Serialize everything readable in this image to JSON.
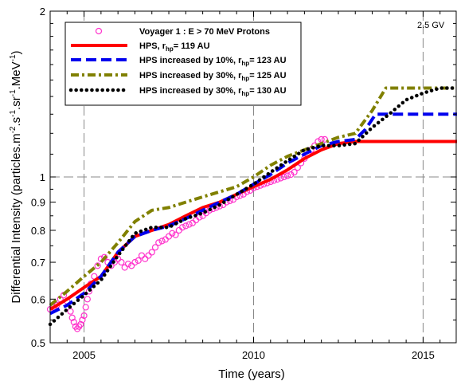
{
  "chart_data": {
    "type": "line",
    "title": "",
    "xlabel": "Time (years)",
    "ylabel": {
      "prefix": "Differential Intensity (particles.m",
      "sup1": "-2",
      "mid1": ".s",
      "sup2": "-1",
      "mid2": ".sr",
      "sup3": "-1",
      "mid3": ".MeV",
      "sup4": "-1",
      "suffix": ")"
    },
    "xlim": [
      2004,
      2016
    ],
    "ylim": [
      0.5,
      2
    ],
    "yscale": "log",
    "x_ticks": [
      2005,
      2010,
      2015
    ],
    "y_ticks": [
      0.5,
      0.6,
      0.7,
      0.8,
      0.9,
      1,
      2
    ],
    "x_ticks_minor": [
      2004.5,
      2005.5,
      2006,
      2006.5,
      2007,
      2007.5,
      2008,
      2008.5,
      2009,
      2009.5,
      2010.5,
      2011,
      2011.5,
      2012,
      2012.5,
      2013,
      2013.5,
      2014,
      2014.5,
      2015.5
    ],
    "y_ticks_minor": [
      0.55,
      0.65,
      0.75,
      0.85,
      0.95,
      1.1,
      1.2,
      1.3,
      1.4,
      1.5,
      1.6,
      1.7,
      1.8,
      1.9
    ],
    "grid": {
      "x": [
        2005,
        2010,
        2015
      ],
      "y": [
        1
      ]
    },
    "annotation": "2.5 GV",
    "legend": {
      "position": "top-left",
      "entries": [
        {
          "label": "Voyager 1 : E > 70 MeV Protons"
        },
        {
          "label": "HPS, r",
          "sub": "hp",
          "rest": "= 119 AU"
        },
        {
          "label": "HPS increased by 10%, r",
          "sub": "hp",
          "rest": "= 123 AU"
        },
        {
          "label": "HPS increased by 30%, r",
          "sub": "hp",
          "rest": "= 125 AU"
        },
        {
          "label": "HPS increased by 30%, r",
          "sub": "hp",
          "rest": "= 130 AU"
        }
      ]
    },
    "series": [
      {
        "style": "circles",
        "color": "#ff33cc",
        "x": [
          2004.0,
          2004.1,
          2004.2,
          2004.3,
          2004.4,
          2004.5,
          2004.6,
          2004.65,
          2004.7,
          2004.75,
          2004.8,
          2004.85,
          2004.9,
          2004.95,
          2005.0,
          2005.05,
          2005.1,
          2005.15,
          2005.2,
          2005.3,
          2005.4,
          2005.5,
          2005.6,
          2005.7,
          2005.8,
          2005.9,
          2006.0,
          2006.1,
          2006.2,
          2006.3,
          2006.4,
          2006.5,
          2006.6,
          2006.7,
          2006.8,
          2006.9,
          2007.0,
          2007.1,
          2007.2,
          2007.3,
          2007.4,
          2007.5,
          2007.6,
          2007.7,
          2007.8,
          2007.9,
          2008.0,
          2008.1,
          2008.2,
          2008.3,
          2008.4,
          2008.5,
          2008.6,
          2008.7,
          2008.8,
          2008.9,
          2009.0,
          2009.1,
          2009.2,
          2009.3,
          2009.4,
          2009.5,
          2009.6,
          2009.7,
          2009.8,
          2009.9,
          2010.0,
          2010.1,
          2010.2,
          2010.3,
          2010.4,
          2010.5,
          2010.6,
          2010.7,
          2010.8,
          2010.9,
          2011.0,
          2011.1,
          2011.2,
          2011.3,
          2011.4,
          2011.5,
          2011.6,
          2011.7,
          2011.8,
          2011.9,
          2012.0,
          2012.1
        ],
        "y": [
          0.575,
          0.58,
          0.585,
          0.6,
          0.61,
          0.595,
          0.57,
          0.555,
          0.545,
          0.535,
          0.53,
          0.535,
          0.54,
          0.55,
          0.56,
          0.58,
          0.6,
          0.62,
          0.64,
          0.66,
          0.69,
          0.71,
          0.715,
          0.7,
          0.69,
          0.7,
          0.71,
          0.7,
          0.685,
          0.695,
          0.69,
          0.7,
          0.705,
          0.72,
          0.71,
          0.72,
          0.73,
          0.745,
          0.76,
          0.765,
          0.77,
          0.78,
          0.79,
          0.785,
          0.8,
          0.81,
          0.815,
          0.82,
          0.825,
          0.835,
          0.845,
          0.85,
          0.86,
          0.87,
          0.875,
          0.88,
          0.885,
          0.89,
          0.9,
          0.905,
          0.91,
          0.92,
          0.925,
          0.93,
          0.94,
          0.945,
          0.955,
          0.96,
          0.965,
          0.97,
          0.975,
          0.98,
          0.985,
          0.99,
          0.995,
          1.0,
          1.005,
          1.01,
          1.02,
          1.04,
          1.06,
          1.08,
          1.1,
          1.12,
          1.14,
          1.16,
          1.17,
          1.17
        ]
      },
      {
        "style": "solid",
        "color": "#ff0000",
        "x": [
          2004.0,
          2004.5,
          2005.0,
          2005.5,
          2006.0,
          2006.5,
          2007.0,
          2007.5,
          2008.0,
          2008.5,
          2009.0,
          2009.5,
          2010.0,
          2010.5,
          2011.0,
          2011.5,
          2012.0,
          2012.5,
          2013.0,
          2013.5,
          2014.0,
          2014.5,
          2015.0,
          2015.5,
          2016.0
        ],
        "y": [
          0.575,
          0.6,
          0.63,
          0.66,
          0.73,
          0.78,
          0.8,
          0.82,
          0.85,
          0.88,
          0.9,
          0.93,
          0.96,
          0.99,
          1.03,
          1.08,
          1.12,
          1.15,
          1.16,
          1.16,
          1.16,
          1.16,
          1.16,
          1.16,
          1.16
        ]
      },
      {
        "style": "dash",
        "color": "#0000ee",
        "x": [
          2004.0,
          2004.5,
          2005.0,
          2005.5,
          2006.0,
          2006.5,
          2007.0,
          2007.5,
          2008.0,
          2008.5,
          2009.0,
          2009.5,
          2010.0,
          2010.5,
          2011.0,
          2011.5,
          2012.0,
          2012.5,
          2013.0,
          2013.3,
          2013.6,
          2014.0,
          2014.5,
          2015.0,
          2015.5,
          2016.0
        ],
        "y": [
          0.565,
          0.585,
          0.615,
          0.66,
          0.73,
          0.78,
          0.8,
          0.815,
          0.84,
          0.87,
          0.9,
          0.93,
          0.97,
          1.01,
          1.06,
          1.1,
          1.14,
          1.16,
          1.17,
          1.22,
          1.3,
          1.3,
          1.3,
          1.3,
          1.3,
          1.3
        ]
      },
      {
        "style": "dashdot",
        "color": "#808000",
        "x": [
          2004.0,
          2004.5,
          2005.0,
          2005.5,
          2006.0,
          2006.5,
          2007.0,
          2007.5,
          2008.0,
          2008.5,
          2009.0,
          2009.5,
          2010.0,
          2010.5,
          2011.0,
          2011.5,
          2012.0,
          2012.5,
          2013.0,
          2013.5,
          2013.9,
          2014.2,
          2014.5,
          2015.0,
          2015.5,
          2016.0
        ],
        "y": [
          0.585,
          0.62,
          0.66,
          0.7,
          0.76,
          0.83,
          0.87,
          0.88,
          0.9,
          0.92,
          0.94,
          0.96,
          1.0,
          1.05,
          1.09,
          1.12,
          1.15,
          1.18,
          1.2,
          1.32,
          1.45,
          1.45,
          1.45,
          1.45,
          1.45,
          1.45
        ]
      },
      {
        "style": "dots",
        "color": "#000000",
        "x": [
          2004.0,
          2004.5,
          2005.0,
          2005.5,
          2006.0,
          2006.5,
          2007.0,
          2007.5,
          2008.0,
          2008.5,
          2009.0,
          2009.5,
          2010.0,
          2010.5,
          2011.0,
          2011.5,
          2012.0,
          2012.5,
          2013.0,
          2013.5,
          2014.0,
          2014.5,
          2015.0,
          2015.5,
          2016.0
        ],
        "y": [
          0.54,
          0.575,
          0.61,
          0.65,
          0.72,
          0.79,
          0.81,
          0.81,
          0.84,
          0.86,
          0.89,
          0.93,
          0.97,
          1.02,
          1.07,
          1.12,
          1.14,
          1.14,
          1.15,
          1.23,
          1.3,
          1.38,
          1.42,
          1.45,
          1.45
        ]
      }
    ]
  }
}
